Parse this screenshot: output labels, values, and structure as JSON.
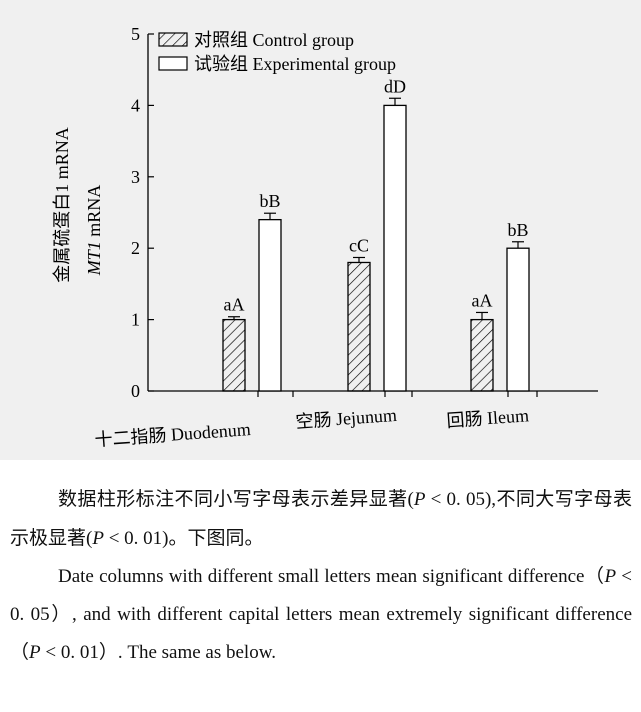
{
  "chart_data": {
    "type": "bar",
    "ylabel_cn": "金属硫蛋白1 mRNA",
    "ylabel_en_italic": "MT1",
    "ylabel_en_rest": " mRNA",
    "ylim": [
      0,
      5
    ],
    "yticks": [
      "0",
      "1",
      "2",
      "3",
      "4",
      "5"
    ],
    "categories": [
      "十二指肠  Duodenum",
      "空肠  Jejunum",
      "回肠  Ileum"
    ],
    "series": [
      {
        "name": "对照组  Control group",
        "pattern": "hatched",
        "values": [
          1.0,
          1.8,
          1.0
        ],
        "errors": [
          0.04,
          0.07,
          0.1
        ],
        "labels": [
          "aA",
          "cC",
          "aA"
        ]
      },
      {
        "name": "试验组  Experimental group",
        "pattern": "open",
        "values": [
          2.4,
          4.0,
          2.0
        ],
        "errors": [
          0.09,
          0.1,
          0.09
        ],
        "labels": [
          "bB",
          "dD",
          "bB"
        ]
      }
    ],
    "legend_position": "top-left",
    "grid": false
  },
  "caption": {
    "cn_before_p1": "数据柱形标注不同小写字母表示差异显著(",
    "p": "P",
    "cn_mid": " < 0. 05),不同大写字母表示极显著(",
    "cn_after_p2": " < 0. 01)。下图同。",
    "en_before_p1": "Date columns with different small letters mean significant difference（",
    "en_mid": " < 0. 05）, and with different capital letters mean extremely significant difference（",
    "en_after_p2": " < 0. 01）. The same as below."
  }
}
